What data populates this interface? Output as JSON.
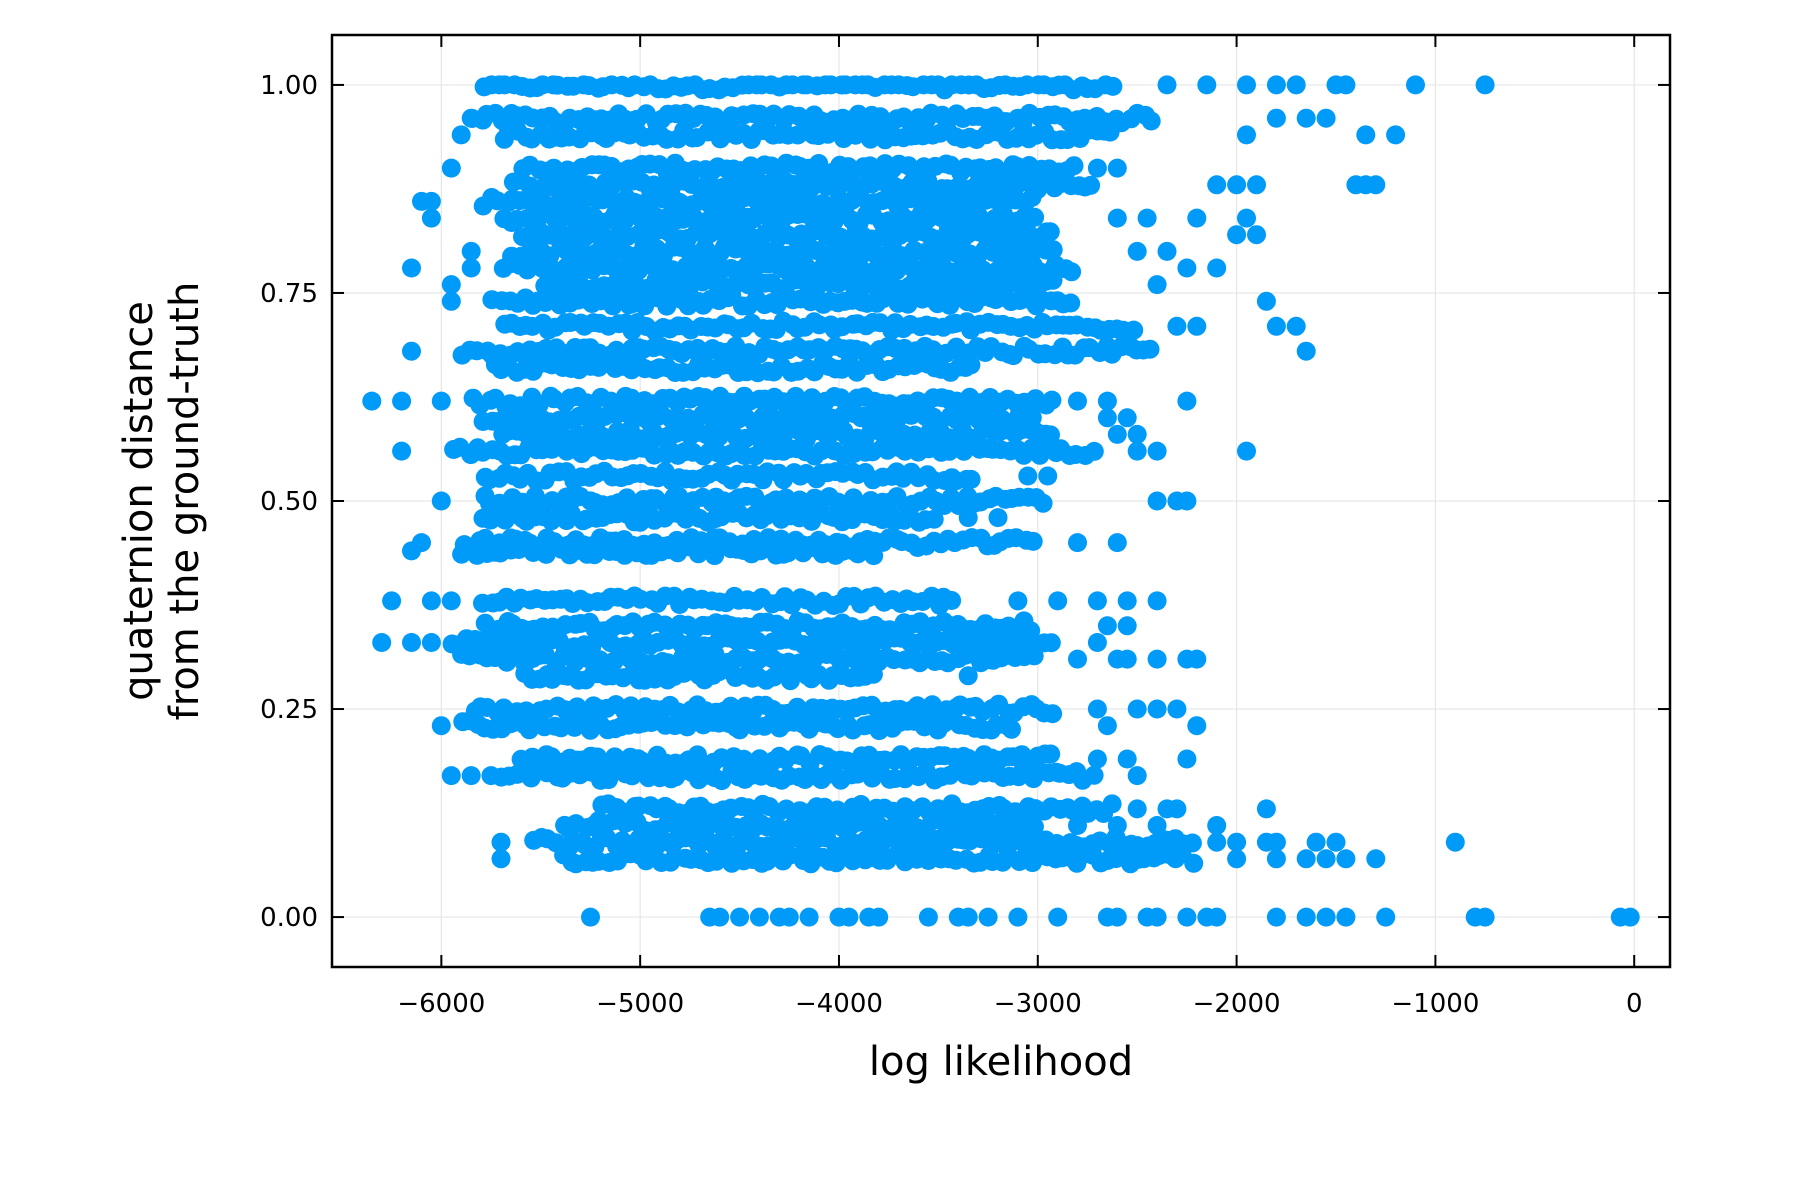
{
  "chart_data": {
    "type": "scatter",
    "xlabel": "log likelihood",
    "ylabel_lines": [
      "quaternion distance",
      "from the ground-truth"
    ],
    "xlim": [
      -6550,
      180
    ],
    "ylim": [
      -0.06,
      1.06
    ],
    "xticks": [
      -6000,
      -5000,
      -4000,
      -3000,
      -2000,
      -1000,
      0
    ],
    "xtick_labels": [
      "−6000",
      "−5000",
      "−4000",
      "−3000",
      "−2000",
      "−1000",
      "0"
    ],
    "yticks": [
      0.0,
      0.25,
      0.5,
      0.75,
      1.0
    ],
    "ytick_labels": [
      "0.00",
      "0.25",
      "0.50",
      "0.75",
      "1.00"
    ],
    "grid": true,
    "legend": "none",
    "series_color": "#009af9",
    "bands": [
      {
        "y": 1.0,
        "xmin": -5800,
        "xmax": -2600,
        "edge_x": [
          -2350,
          -2150,
          -1950,
          -1800,
          -1700,
          -1500,
          -1450,
          -1100,
          -750
        ]
      },
      {
        "y": 0.96,
        "xmin": -5850,
        "xmax": -2400,
        "edge_x": [
          -5850,
          -1800,
          -1650,
          -1550
        ]
      },
      {
        "y": 0.94,
        "xmin": -5700,
        "xmax": -2600,
        "edge_x": [
          -5900,
          -1950,
          -1350,
          -1200
        ]
      },
      {
        "y": 0.9,
        "xmin": -5600,
        "xmax": -2800,
        "edge_x": [
          -5950,
          -2700,
          -2600
        ]
      },
      {
        "y": 0.88,
        "xmin": -5650,
        "xmax": -2700,
        "edge_x": [
          -2100,
          -2000,
          -1900,
          -1400,
          -1350,
          -1300
        ]
      },
      {
        "y": 0.86,
        "xmin": -5800,
        "xmax": -3000,
        "edge_x": [
          -6100,
          -6050
        ]
      },
      {
        "y": 0.84,
        "xmin": -5700,
        "xmax": -3000,
        "edge_x": [
          -6050,
          -2600,
          -2450,
          -2200,
          -1950
        ]
      },
      {
        "y": 0.82,
        "xmin": -5600,
        "xmax": -2900,
        "edge_x": [
          -2000,
          -1900
        ]
      },
      {
        "y": 0.8,
        "xmin": -5650,
        "xmax": -2900,
        "edge_x": [
          -5850,
          -2500,
          -2350
        ]
      },
      {
        "y": 0.78,
        "xmin": -5700,
        "xmax": -2800,
        "edge_x": [
          -6150,
          -5850,
          -2250,
          -2100
        ]
      },
      {
        "y": 0.76,
        "xmin": -5500,
        "xmax": -2900,
        "edge_x": [
          -5950,
          -2400
        ]
      },
      {
        "y": 0.74,
        "xmin": -5750,
        "xmax": -2800,
        "edge_x": [
          -5950,
          -1850
        ]
      },
      {
        "y": 0.71,
        "xmin": -5700,
        "xmax": -2500,
        "edge_x": [
          -2300,
          -2200,
          -1800,
          -1700
        ]
      },
      {
        "y": 0.68,
        "xmin": -5900,
        "xmax": -2400,
        "edge_x": [
          -6150,
          -1650
        ]
      },
      {
        "y": 0.66,
        "xmin": -5750,
        "xmax": -3300
      },
      {
        "y": 0.62,
        "xmin": -5850,
        "xmax": -2900,
        "edge_x": [
          -6350,
          -6200,
          -6000,
          -2800,
          -2650,
          -2250
        ]
      },
      {
        "y": 0.6,
        "xmin": -5800,
        "xmax": -3000,
        "edge_x": [
          -2650,
          -2550
        ]
      },
      {
        "y": 0.58,
        "xmin": -5700,
        "xmax": -2900,
        "edge_x": [
          -2600,
          -2500
        ]
      },
      {
        "y": 0.56,
        "xmin": -5950,
        "xmax": -2700,
        "edge_x": [
          -6200,
          -2500,
          -2400,
          -1950
        ]
      },
      {
        "y": 0.53,
        "xmin": -5800,
        "xmax": -3300,
        "edge_x": [
          -3050,
          -2950
        ]
      },
      {
        "y": 0.5,
        "xmin": -5800,
        "xmax": -2950,
        "edge_x": [
          -6000,
          -2400,
          -2300,
          -2250
        ]
      },
      {
        "y": 0.48,
        "xmin": -5800,
        "xmax": -3500,
        "edge_x": [
          -3350,
          -3200
        ]
      },
      {
        "y": 0.45,
        "xmin": -5900,
        "xmax": -3000,
        "edge_x": [
          -6100,
          -2800,
          -2600
        ]
      },
      {
        "y": 0.44,
        "xmin": -5900,
        "xmax": -3800,
        "edge_x": [
          -6150
        ]
      },
      {
        "y": 0.38,
        "xmin": -5800,
        "xmax": -3400,
        "edge_x": [
          -6250,
          -6050,
          -5950,
          -3100,
          -2900,
          -2700,
          -2550,
          -2400
        ]
      },
      {
        "y": 0.35,
        "xmin": -5800,
        "xmax": -3000,
        "edge_x": [
          -2650,
          -2550
        ]
      },
      {
        "y": 0.33,
        "xmin": -5950,
        "xmax": -2900,
        "edge_x": [
          -6300,
          -6150,
          -6050,
          -2700
        ]
      },
      {
        "y": 0.31,
        "xmin": -5900,
        "xmax": -3000,
        "edge_x": [
          -2800,
          -2600,
          -2550,
          -2400,
          -2250,
          -2200
        ]
      },
      {
        "y": 0.29,
        "xmin": -5600,
        "xmax": -3800,
        "edge_x": [
          -3350
        ]
      },
      {
        "y": 0.25,
        "xmin": -5850,
        "xmax": -2900,
        "edge_x": [
          -2700,
          -2500,
          -2400,
          -2300
        ]
      },
      {
        "y": 0.23,
        "xmin": -5900,
        "xmax": -3100,
        "edge_x": [
          -6000,
          -2650,
          -2200
        ]
      },
      {
        "y": 0.19,
        "xmin": -5600,
        "xmax": -2900,
        "edge_x": [
          -2700,
          -2550,
          -2250
        ]
      },
      {
        "y": 0.17,
        "xmin": -5700,
        "xmax": -2700,
        "edge_x": [
          -5950,
          -5850,
          -5750,
          -2500
        ]
      },
      {
        "y": 0.13,
        "xmin": -5200,
        "xmax": -2600,
        "edge_x": [
          -2500,
          -2350,
          -2300,
          -1850
        ]
      },
      {
        "y": 0.11,
        "xmin": -5400,
        "xmax": -3000,
        "edge_x": [
          -2800,
          -2600,
          -2400,
          -2100
        ]
      },
      {
        "y": 0.09,
        "xmin": -5550,
        "xmax": -2200,
        "edge_x": [
          -5700,
          -2100,
          -2000,
          -1850,
          -1800,
          -1600,
          -1500,
          -900
        ]
      },
      {
        "y": 0.07,
        "xmin": -5400,
        "xmax": -2200,
        "edge_x": [
          -5700,
          -2000,
          -1800,
          -1650,
          -1550,
          -1450,
          -1300
        ]
      }
    ],
    "zero_points_x": [
      -5250,
      -4650,
      -4600,
      -4500,
      -4400,
      -4300,
      -4250,
      -4150,
      -4000,
      -3950,
      -3850,
      -3800,
      -3550,
      -3400,
      -3350,
      -3250,
      -3100,
      -2900,
      -2650,
      -2600,
      -2450,
      -2400,
      -2250,
      -2150,
      -2100,
      -1800,
      -1650,
      -1550,
      -1450,
      -1250,
      -800,
      -750,
      -70,
      -20
    ]
  }
}
